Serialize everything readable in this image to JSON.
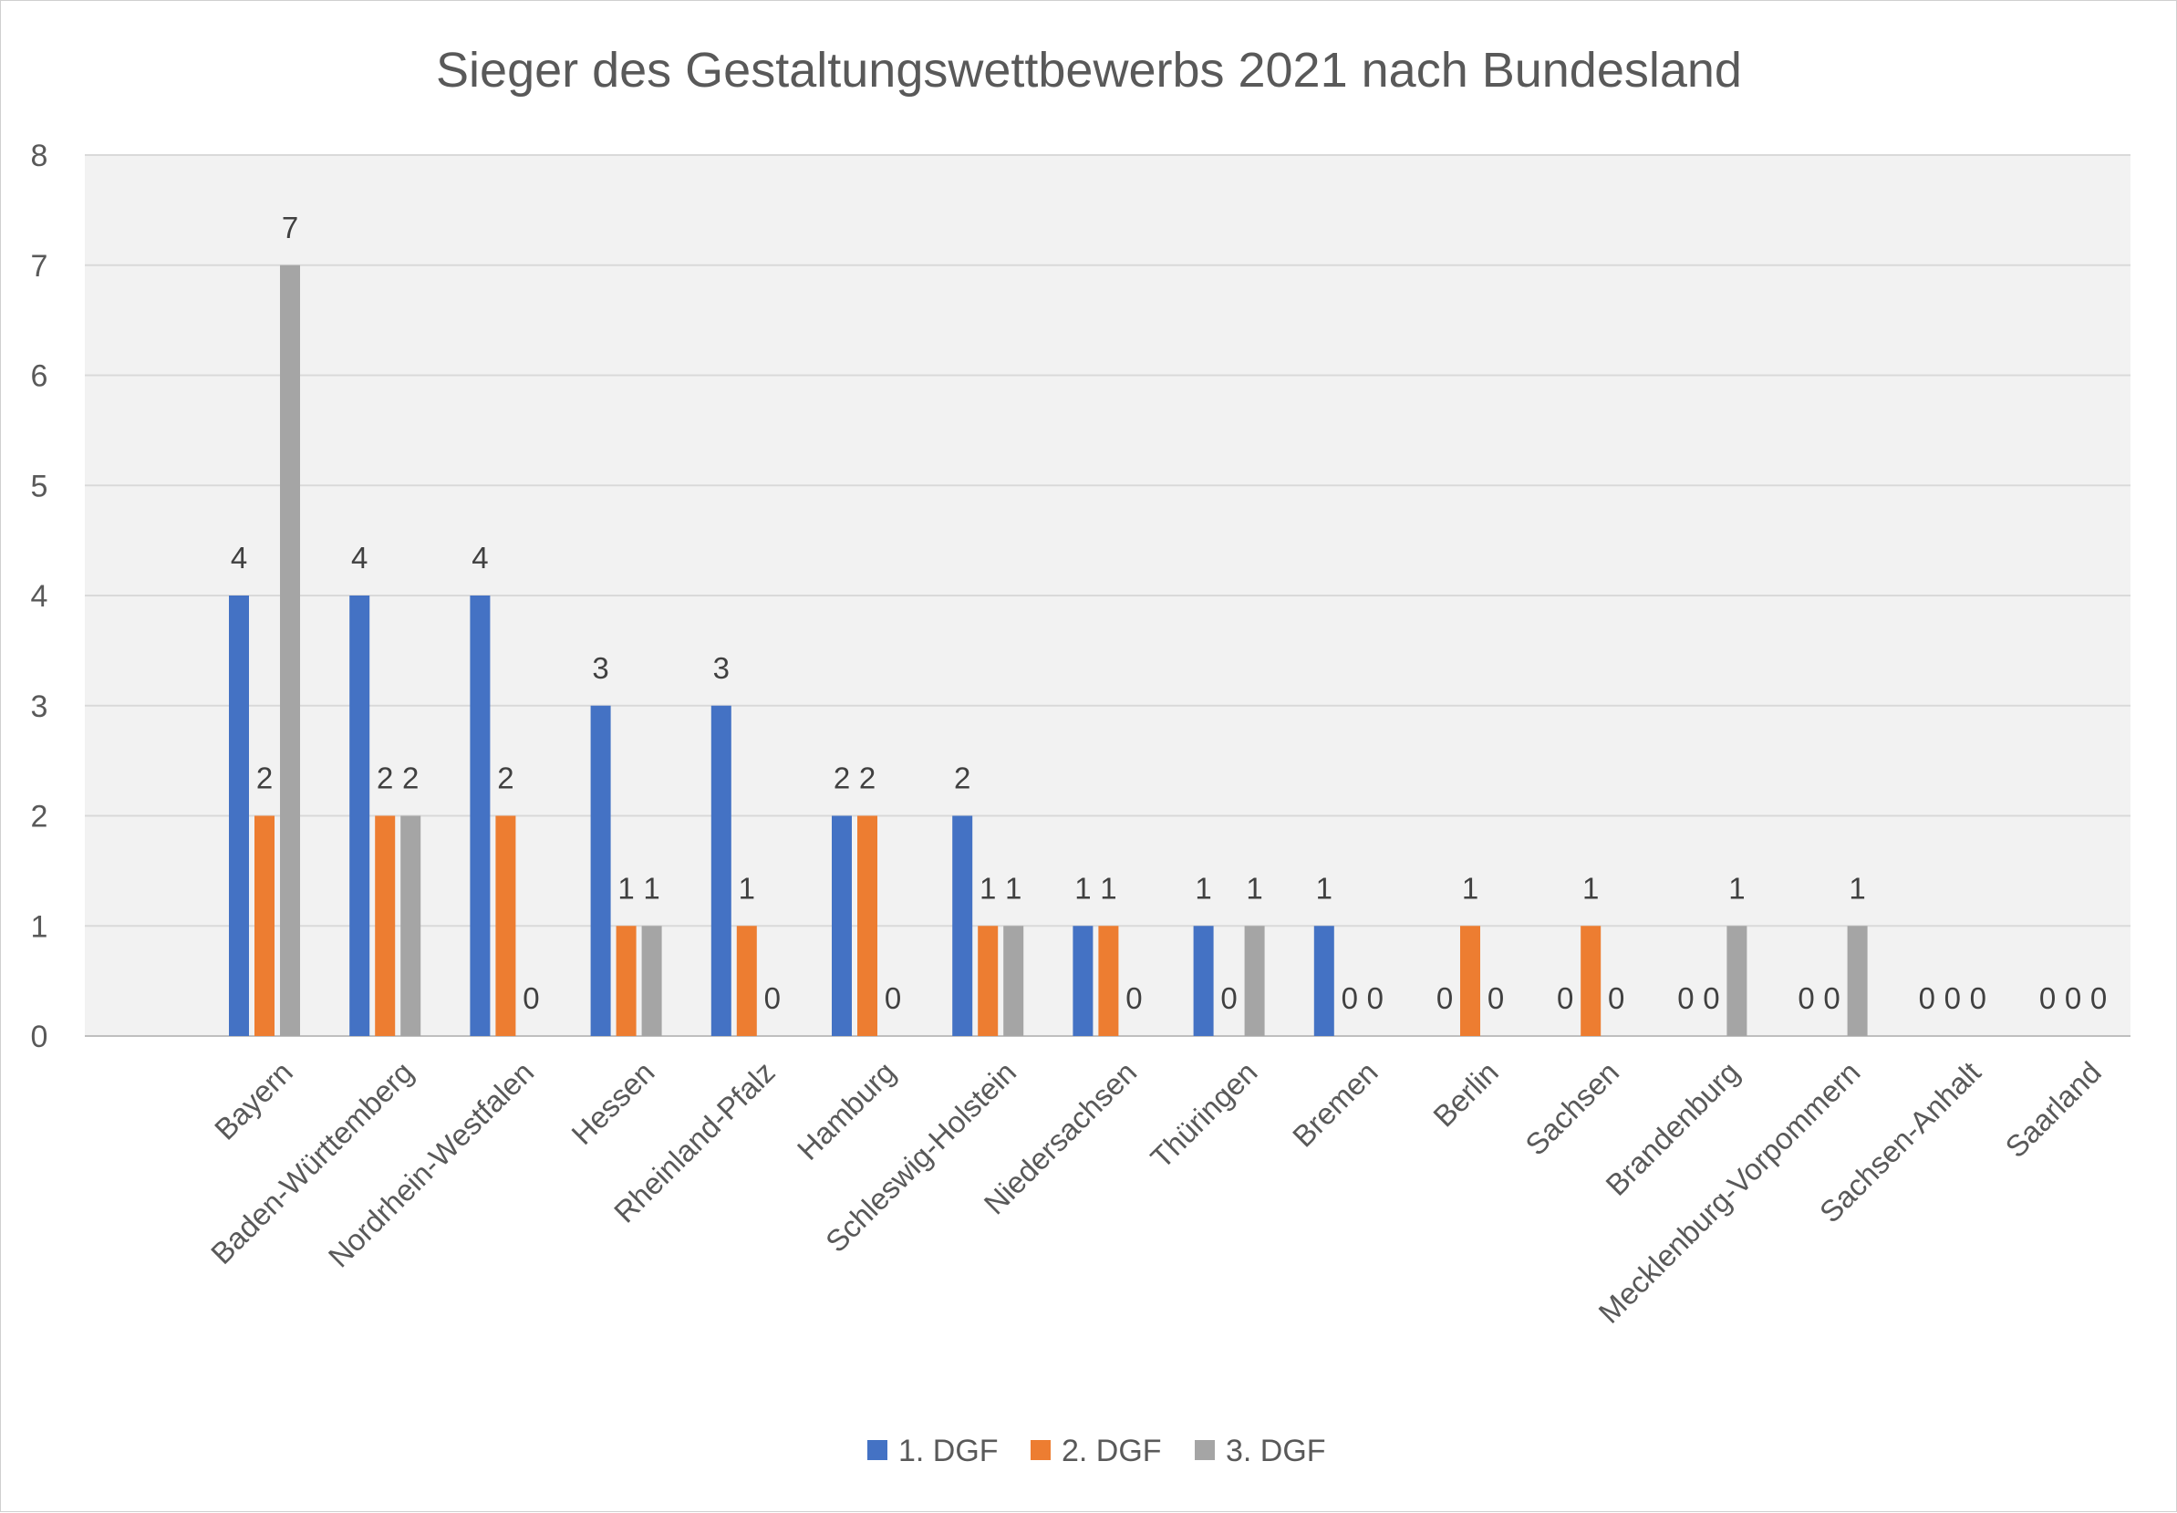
{
  "chart_data": {
    "type": "bar",
    "title": "Sieger des Gestaltungswettbewerbs 2021 nach Bundesland",
    "xlabel": "",
    "ylabel": "",
    "ylim": [
      0,
      8
    ],
    "yticks": [
      0,
      1,
      2,
      3,
      4,
      5,
      6,
      7,
      8
    ],
    "grid": true,
    "legend_position": "bottom",
    "categories": [
      "Bayern",
      "Baden-Württemberg",
      "Nordrhein-Westfalen",
      "Hessen",
      "Rheinland-Pfalz",
      "Hamburg",
      "Schleswig-Holstein",
      "Niedersachsen",
      "Thüringen",
      "Bremen",
      "Berlin",
      "Sachsen",
      "Brandenburg",
      "Mecklenburg-Vorpommern",
      "Sachsen-Anhalt",
      "Saarland"
    ],
    "series": [
      {
        "name": "1. DGF",
        "color": "#4472C4",
        "values": [
          4,
          4,
          4,
          3,
          3,
          2,
          2,
          1,
          1,
          1,
          0,
          0,
          0,
          0,
          0,
          0
        ]
      },
      {
        "name": "2. DGF",
        "color": "#ED7D31",
        "values": [
          2,
          2,
          2,
          1,
          1,
          2,
          1,
          1,
          0,
          0,
          1,
          1,
          0,
          0,
          0,
          0
        ]
      },
      {
        "name": "3. DGF",
        "color": "#A5A5A5",
        "values": [
          7,
          2,
          0,
          1,
          0,
          0,
          1,
          0,
          1,
          0,
          0,
          0,
          1,
          1,
          0,
          0
        ]
      }
    ]
  }
}
